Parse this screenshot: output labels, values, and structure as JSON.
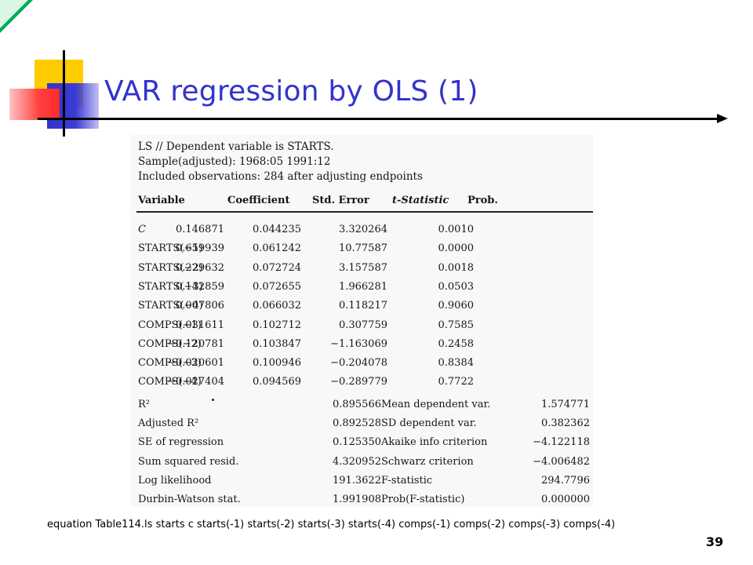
{
  "slide": {
    "title": "VAR regression by OLS (1)",
    "caption": "equation Table114.ls starts c starts(-1) starts(-2) starts(-3) starts(-4) comps(-1) comps(-2) comps(-3) comps(-4)",
    "page_number": "39",
    "colors": {
      "title": "#3333cc",
      "yellow": "#ffcc00",
      "blue": "#3333cc",
      "red": "#ff3333",
      "corner_green": "#00aa55"
    }
  },
  "table": {
    "header_lines": [
      "LS // Dependent variable is STARTS.",
      "Sample(adjusted): 1968:05 1991:12",
      "Included observations: 284 after adjusting endpoints"
    ],
    "columns": [
      "Variable",
      "Coefficient",
      "Std. Error",
      "t-Statistic",
      "Prob."
    ],
    "rows": [
      [
        "C",
        "0.146871",
        "0.044235",
        "3.320264",
        "0.0010"
      ],
      [
        "STARTS(−1)",
        "0.659939",
        "0.061242",
        "10.77587",
        "0.0000"
      ],
      [
        "STARTS(−2)",
        "0.229632",
        "0.072724",
        "3.157587",
        "0.0018"
      ],
      [
        "STARTS(−3)",
        "0.142859",
        "0.072655",
        "1.966281",
        "0.0503"
      ],
      [
        "STARTS(−4)",
        "0.007806",
        "0.066032",
        "0.118217",
        "0.9060"
      ],
      [
        "COMPS(−1)",
        "0.031611",
        "0.102712",
        "0.307759",
        "0.7585"
      ],
      [
        "COMPS(−2)",
        "−0.120781",
        "0.103847",
        "−1.163069",
        "0.2458"
      ],
      [
        "COMPS(−3)",
        "−0.020601",
        "0.100946",
        "−0.204078",
        "0.8384"
      ],
      [
        "COMPS(−4)",
        "−0.027404",
        "0.094569",
        "−0.289779",
        "0.7722"
      ]
    ],
    "stats": [
      [
        "R²",
        "0.895566",
        "Mean dependent var.",
        "1.574771"
      ],
      [
        "Adjusted R²",
        "0.892528",
        "SD dependent var.",
        "0.382362"
      ],
      [
        "SE of regression",
        "0.125350",
        "Akaike info criterion",
        "−4.122118"
      ],
      [
        "Sum squared resid.",
        "4.320952",
        "Schwarz criterion",
        "−4.006482"
      ],
      [
        "Log likelihood",
        "191.3622",
        "F-statistic",
        "294.7796"
      ],
      [
        "Durbin-Watson stat.",
        "1.991908",
        "Prob(F-statistic)",
        "0.000000"
      ]
    ]
  }
}
